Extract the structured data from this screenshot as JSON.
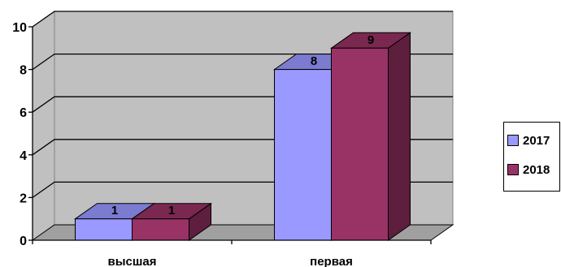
{
  "chart_data": {
    "type": "bar",
    "categories": [
      "высшая",
      "первая"
    ],
    "series": [
      {
        "name": "2017",
        "values": [
          1,
          8
        ],
        "color": "#9999FF",
        "top_color": "#7B7BD0",
        "side_color": "#5A5AA8"
      },
      {
        "name": "2018",
        "values": [
          1,
          9
        ],
        "color": "#993366",
        "top_color": "#7A2850",
        "side_color": "#5E1E3E"
      }
    ],
    "ylim": [
      0,
      10
    ],
    "yticks": [
      0,
      2,
      4,
      6,
      8,
      10
    ],
    "grid": true,
    "legend": "right",
    "wall_color": "#C0C0C0",
    "floor_color": "#A0A0A0"
  }
}
